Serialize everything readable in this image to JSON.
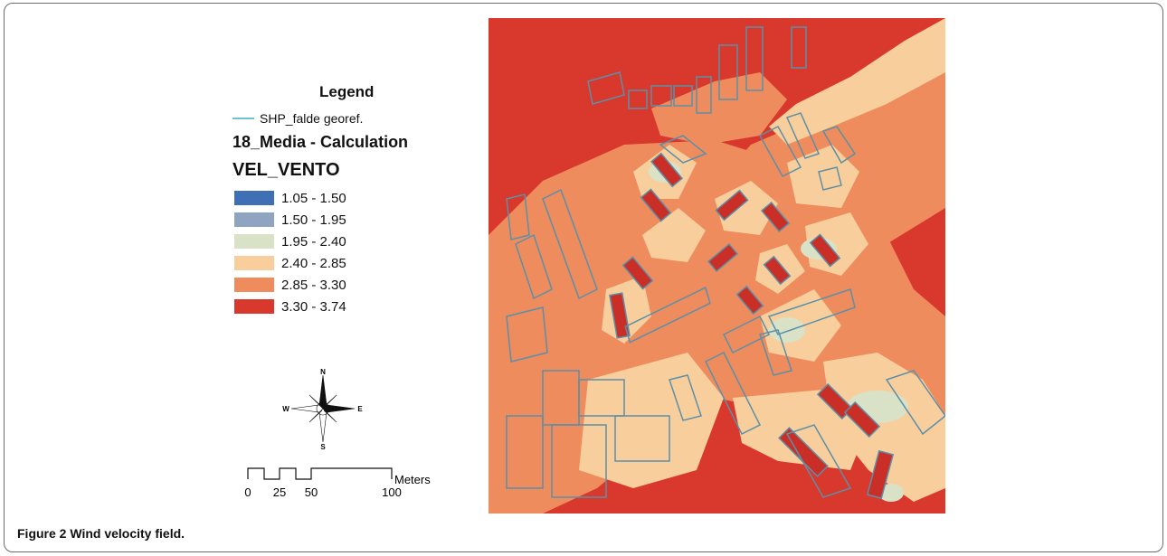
{
  "legend": {
    "title": "Legend",
    "line_layer": "SHP_falde georef.",
    "layer_name": "18_Media - Calculation",
    "field_name": "VEL_VENTO",
    "line_color": "#6fc0d0",
    "classes": [
      {
        "label": "1.05 - 1.50",
        "color": "#3f6fb5"
      },
      {
        "label": "1.50 - 1.95",
        "color": "#8ea4c1"
      },
      {
        "label": "1.95 - 2.40",
        "color": "#d9e1c6"
      },
      {
        "label": "2.40 - 2.85",
        "color": "#f8cf9c"
      },
      {
        "label": "2.85 - 3.30",
        "color": "#ee8c5d"
      },
      {
        "label": "3.30 - 3.74",
        "color": "#d9382c"
      }
    ]
  },
  "compass": {
    "n": "N",
    "s": "S",
    "e": "E",
    "w": "W"
  },
  "scale": {
    "ticks": [
      "0",
      "25",
      "50",
      "100"
    ],
    "unit": "Meters"
  },
  "caption": {
    "label": "Figure 2",
    "text": "Wind velocity field."
  }
}
